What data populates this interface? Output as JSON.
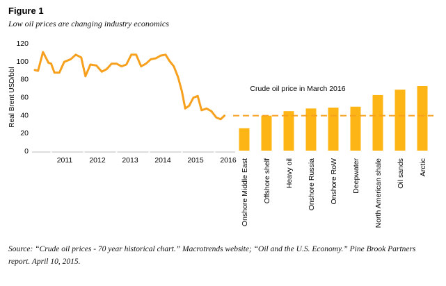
{
  "figure": {
    "label": "Figure 1",
    "subtitle": "Low oil prices are changing industry economics",
    "source": "Source: “Crude oil prices - 70 year historical chart.” Macrotrends website; “Oil and the U.S. Economy.” Pine Brook Partners report. April 10, 2015."
  },
  "colors": {
    "accent": "#F7A01E",
    "bars": "#FDB515",
    "axis": "#bbbbbb",
    "text": "#000000"
  },
  "chart_data": [
    {
      "type": "line",
      "title": "",
      "xlabel": "",
      "ylabel": "Real Brent USD/bbl",
      "ylim": [
        0,
        120
      ],
      "yticks": [
        0,
        20,
        40,
        60,
        80,
        100,
        120
      ],
      "xlim": [
        2010.5,
        2016.5
      ],
      "year_labels": [
        "2011",
        "2012",
        "2013",
        "2014",
        "2015",
        "2016"
      ],
      "grid": false,
      "series": [
        {
          "x": [
            2010.5,
            2010.6,
            2010.75,
            2010.92,
            2011.0,
            2011.1,
            2011.25,
            2011.4,
            2011.6,
            2011.75,
            2011.92,
            2012.05,
            2012.2,
            2012.38,
            2012.55,
            2012.7,
            2012.85,
            2013.0,
            2013.15,
            2013.3,
            2013.45,
            2013.6,
            2013.75,
            2013.9,
            2014.05,
            2014.2,
            2014.35,
            2014.5,
            2014.62,
            2014.75,
            2014.88,
            2015.0,
            2015.1,
            2015.22,
            2015.35,
            2015.48,
            2015.6,
            2015.75,
            2015.9,
            2016.05,
            2016.18,
            2016.3
          ],
          "y": [
            90,
            89,
            110,
            98,
            97,
            87,
            87,
            99,
            102,
            107,
            104,
            83,
            96,
            95,
            88,
            91,
            97,
            97,
            94,
            96,
            107,
            107,
            94,
            97,
            102,
            103,
            106,
            107,
            100,
            94,
            82,
            66,
            47,
            50,
            59,
            61,
            45,
            47,
            44,
            37,
            35,
            39
          ]
        }
      ]
    },
    {
      "type": "bar",
      "title": "",
      "categories": [
        "Onshore Middle East",
        "Offshore shelf",
        "Heavy oil",
        "Onshore Russia",
        "Onshore RoW",
        "Deepwater",
        "North American shale",
        "Oil sands",
        "Arctic"
      ],
      "values": [
        25,
        39,
        44,
        47,
        48,
        49,
        62,
        68,
        72
      ],
      "ylim": [
        0,
        120
      ],
      "reference_line": {
        "label": "Crude oil price in March 2016",
        "value": 39
      }
    }
  ]
}
